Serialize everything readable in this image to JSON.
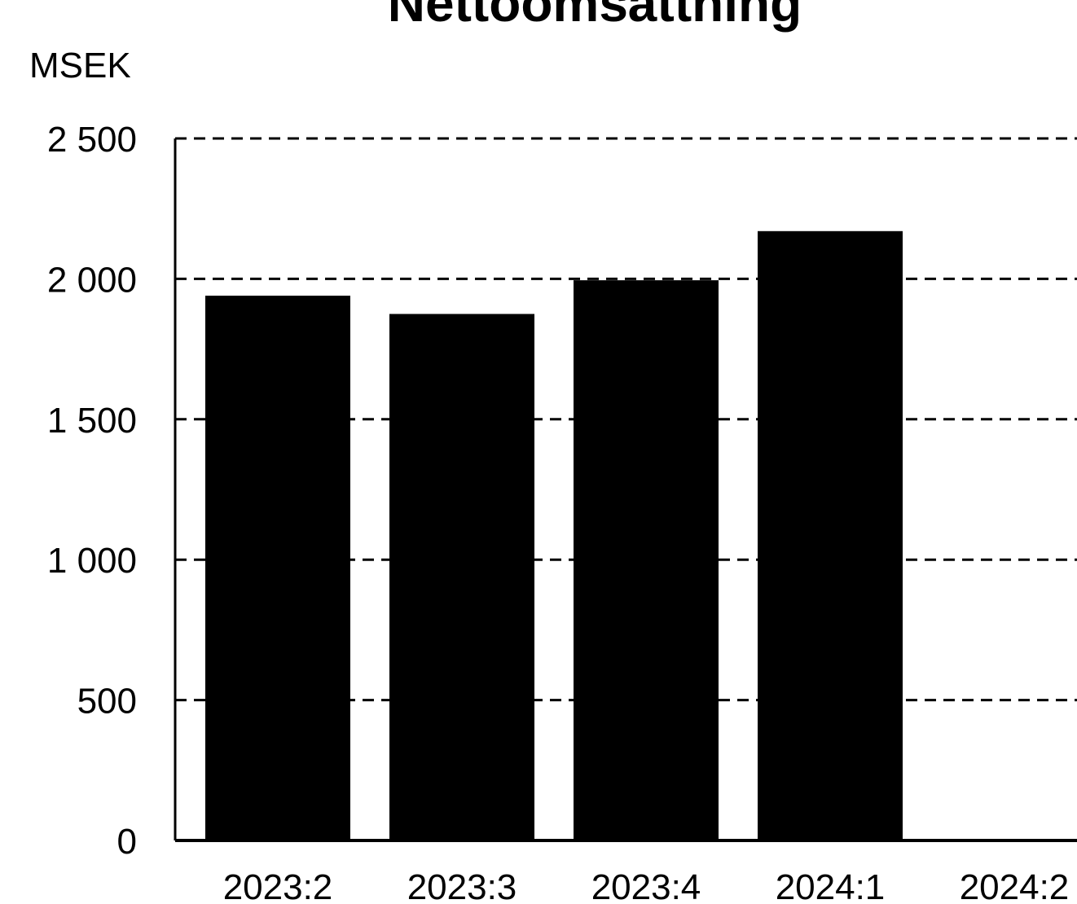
{
  "chart_data": {
    "type": "bar",
    "title": "Nettoomsättning",
    "unit_label": "MSEK",
    "xlabel": "",
    "ylabel": "",
    "categories": [
      "2023:2",
      "2023:3",
      "2023:4",
      "2024:1",
      "2024:2"
    ],
    "values": [
      1940,
      1875,
      1995,
      2170,
      0
    ],
    "ylim": [
      0,
      2500
    ],
    "yticks": [
      0,
      500,
      1000,
      1500,
      2000,
      2500
    ],
    "ytick_labels": [
      "0",
      "500",
      "1 000",
      "1 500",
      "2 000",
      "2 500"
    ],
    "grid": true,
    "legend": "none",
    "bar_color": "#000000",
    "grid_color": "#000000"
  }
}
